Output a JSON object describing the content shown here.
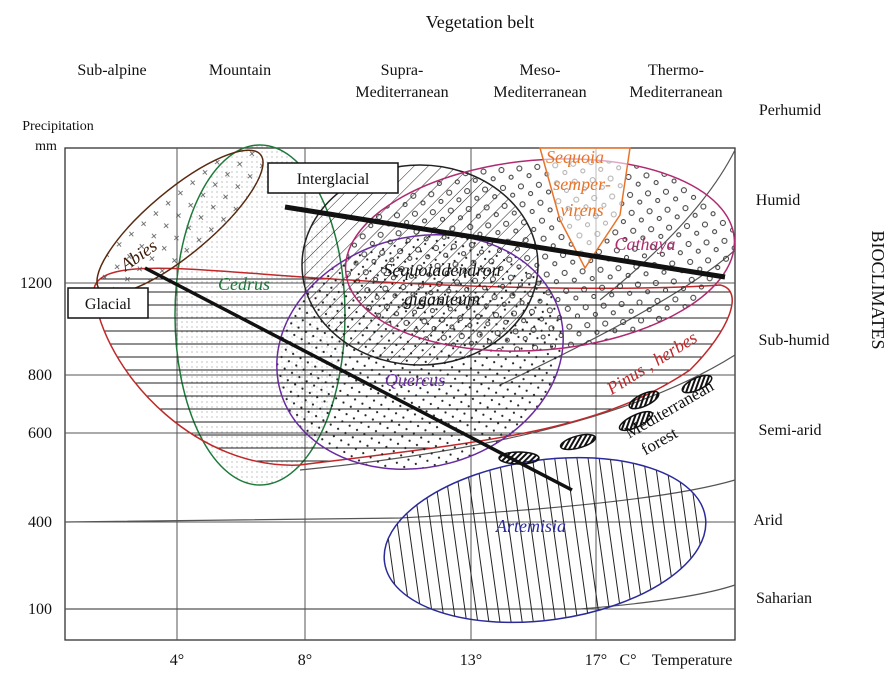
{
  "title": "Vegetation belt",
  "belts": [
    [
      "Sub-alpine"
    ],
    [
      "Mountain"
    ],
    [
      "Supra-",
      "Mediterranean"
    ],
    [
      "Meso-",
      "Mediterranean"
    ],
    [
      "Thermo-",
      "Mediterranean"
    ]
  ],
  "y_axis": {
    "label": [
      "Precipitation",
      "mm"
    ],
    "ticks": [
      "1200",
      "800",
      "600",
      "400",
      "100"
    ]
  },
  "x_axis": {
    "ticks": [
      "4°",
      "8°",
      "13°",
      "17°"
    ],
    "unit": "C°",
    "label": "Temperature"
  },
  "bioclimates": {
    "title": "BIOCLIMATES",
    "zones": [
      "Perhumid",
      "Humid",
      "Sub-humid",
      "Semi-arid",
      "Arid",
      "Saharian"
    ]
  },
  "periods": {
    "interglacial": "Interglacial",
    "glacial": "Glacial"
  },
  "taxa": {
    "abies": "Abies",
    "cedrus": "Cedrus",
    "sequoiadendron": [
      "Sequoiadendron",
      "giganteum"
    ],
    "quercus": "Quercus",
    "cathaya": "Cathaya",
    "sequoia": [
      "Sequoia",
      "semper-",
      "virens"
    ],
    "pinus": "Pinus , herbes",
    "mediterranean_forest": [
      "Mediterranean",
      "forest"
    ],
    "artemisia": "Artemisia"
  }
}
